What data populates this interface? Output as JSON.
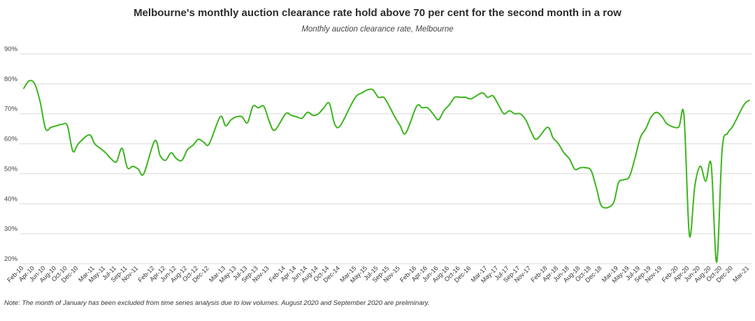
{
  "title": "Melbourne's monthly auction clearance rate hold above 70 per cent for the second month in a row",
  "subtitle": "Monthly auction clearance rate, Melbourne",
  "note": "Note: The month of January has been excluded from time series analysis due to low volumes. August 2020 and September 2020 are preliminary.",
  "colors": {
    "line": "#3db51f",
    "grid": "#d9d9d9",
    "axis": "#444444"
  },
  "chart_data": {
    "type": "line",
    "title": "Melbourne's monthly auction clearance rate hold above 70 per cent for the second month in a row",
    "subtitle": "Monthly auction clearance rate, Melbourne",
    "xlabel": "",
    "ylabel": "",
    "ylim": [
      20,
      90
    ],
    "y_ticks": [
      "20%",
      "30%",
      "40%",
      "50%",
      "60%",
      "70%",
      "80%",
      "90%"
    ],
    "grid": "horizontal",
    "legend": "none",
    "x_tick_labels": [
      "Feb-10",
      "Apr-10",
      "Jun-10",
      "Aug-10",
      "Oct-10",
      "Dec-10",
      "Mar-11",
      "May-11",
      "Jul-11",
      "Sep-11",
      "Nov-11",
      "Feb-12",
      "Apr-12",
      "Jun-12",
      "Aug-12",
      "Oct-12",
      "Dec-12",
      "Mar-13",
      "May-13",
      "Jul-13",
      "Sep-13",
      "Nov-13",
      "Feb-14",
      "Apr-14",
      "Jun-14",
      "Aug-14",
      "Oct-14",
      "Dec-14",
      "Mar-15",
      "May-15",
      "Jul-15",
      "Sep-15",
      "Nov-15",
      "Feb-16",
      "Apr-16",
      "Jun-16",
      "Aug-16",
      "Oct-16",
      "Dec-16",
      "Mar-17",
      "May-17",
      "Jul-17",
      "Sep-17",
      "Nov-17",
      "Feb-18",
      "Apr-18",
      "Jun-18",
      "Aug-18",
      "Oct-18",
      "Dec-18",
      "Mar-19",
      "May-19",
      "Jul-19",
      "Sep-19",
      "Nov-19",
      "Feb-20",
      "Apr-20",
      "Jun-20",
      "Aug-20",
      "Oct-20",
      "Dec-20",
      "Mar-21"
    ],
    "series": [
      {
        "x": [
          "Feb-10",
          "Mar-10",
          "Apr-10",
          "May-10",
          "Jun-10",
          "Jul-10",
          "Aug-10",
          "Sep-10",
          "Oct-10",
          "Nov-10",
          "Dec-10",
          "Feb-11",
          "Mar-11",
          "Apr-11",
          "May-11",
          "Jun-11",
          "Jul-11",
          "Aug-11",
          "Sep-11",
          "Oct-11",
          "Nov-11",
          "Dec-11",
          "Feb-12",
          "Mar-12",
          "Apr-12",
          "May-12",
          "Jun-12",
          "Jul-12",
          "Aug-12",
          "Sep-12",
          "Oct-12",
          "Nov-12",
          "Dec-12",
          "Feb-13",
          "Mar-13",
          "Apr-13",
          "May-13",
          "Jun-13",
          "Jul-13",
          "Aug-13",
          "Sep-13",
          "Oct-13",
          "Nov-13",
          "Dec-13",
          "Feb-14",
          "Mar-14",
          "Apr-14",
          "May-14",
          "Jun-14",
          "Jul-14",
          "Aug-14",
          "Sep-14",
          "Oct-14",
          "Nov-14",
          "Dec-14",
          "Feb-15",
          "Mar-15",
          "Apr-15",
          "May-15",
          "Jun-15",
          "Jul-15",
          "Aug-15",
          "Sep-15",
          "Oct-15",
          "Nov-15",
          "Dec-15",
          "Feb-16",
          "Mar-16",
          "Apr-16",
          "May-16",
          "Jun-16",
          "Jul-16",
          "Aug-16",
          "Sep-16",
          "Oct-16",
          "Nov-16",
          "Dec-16",
          "Feb-17",
          "Mar-17",
          "Apr-17",
          "May-17",
          "Jun-17",
          "Jul-17",
          "Aug-17",
          "Sep-17",
          "Oct-17",
          "Nov-17",
          "Dec-17",
          "Feb-18",
          "Mar-18",
          "Apr-18",
          "May-18",
          "Jun-18",
          "Jul-18",
          "Aug-18",
          "Sep-18",
          "Oct-18",
          "Nov-18",
          "Dec-18",
          "Feb-19",
          "Mar-19",
          "Apr-19",
          "May-19",
          "Jun-19",
          "Jul-19",
          "Aug-19",
          "Sep-19",
          "Oct-19",
          "Nov-19",
          "Dec-19",
          "Feb-20",
          "Mar-20",
          "Apr-20",
          "May-20",
          "Jun-20",
          "Jul-20",
          "Aug-20",
          "Sep-20",
          "Oct-20",
          "Nov-20",
          "Dec-20",
          "Feb-21",
          "Mar-21"
        ],
        "y": [
          78.5,
          81.0,
          80.0,
          74.0,
          65.0,
          65.5,
          66.0,
          66.5,
          66.0,
          57.5,
          60.0,
          63.0,
          60.0,
          58.5,
          57.0,
          55.0,
          54.0,
          58.5,
          52.0,
          52.5,
          51.5,
          50.0,
          61.0,
          56.0,
          54.5,
          57.0,
          55.0,
          54.5,
          58.0,
          59.5,
          61.5,
          60.5,
          60.0,
          69.0,
          66.0,
          68.0,
          69.0,
          69.0,
          67.0,
          72.5,
          72.0,
          72.5,
          67.5,
          64.5,
          70.0,
          69.5,
          69.0,
          68.5,
          70.5,
          69.5,
          70.0,
          72.0,
          73.5,
          66.5,
          66.0,
          73.0,
          76.0,
          77.0,
          78.0,
          78.0,
          75.5,
          75.5,
          72.5,
          69.0,
          66.0,
          63.5,
          72.5,
          72.0,
          72.0,
          70.0,
          68.0,
          71.0,
          73.0,
          75.5,
          75.5,
          75.5,
          75.0,
          77.0,
          75.5,
          76.0,
          73.0,
          70.0,
          71.0,
          70.0,
          70.0,
          68.0,
          64.0,
          61.5,
          65.5,
          62.0,
          60.0,
          57.0,
          55.0,
          51.5,
          52.0,
          52.0,
          51.0,
          45.0,
          39.0,
          40.0,
          47.0,
          48.0,
          49.0,
          55.0,
          62.0,
          65.0,
          69.0,
          70.5,
          69.0,
          66.5,
          65.5,
          69.5,
          29.5,
          46.0,
          52.5,
          47.5,
          53.0,
          20.5,
          58.0,
          63.5,
          66.0,
          73.0,
          74.5
        ]
      }
    ]
  }
}
